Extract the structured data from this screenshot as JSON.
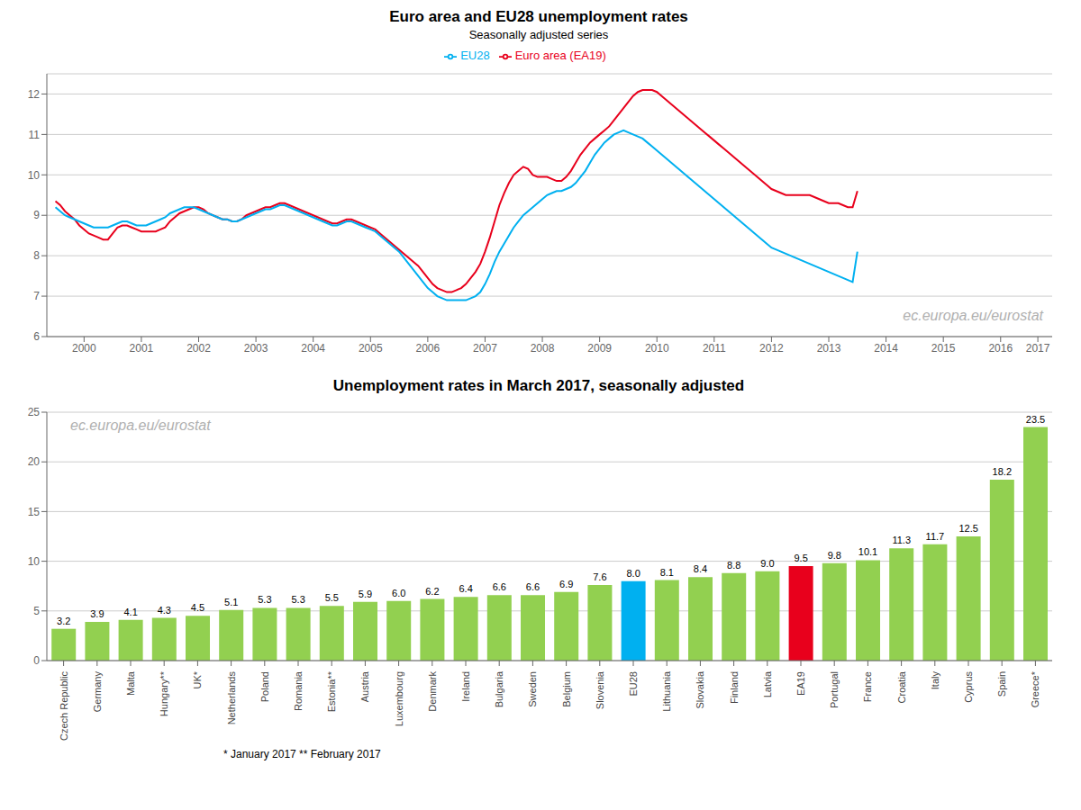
{
  "chart_data": [
    {
      "type": "line",
      "title": "Euro area and EU28 unemployment rates",
      "subtitle": "Seasonally adjusted series",
      "x": [
        2000,
        2000.083333,
        2000.166667,
        2000.25,
        2000.333333,
        2000.416667,
        2000.5,
        2000.583333,
        2000.666667,
        2000.75,
        2000.833333,
        2000.916667,
        2001,
        2001.083333,
        2001.166667,
        2001.25,
        2001.333333,
        2001.416667,
        2001.5,
        2001.583333,
        2001.666667,
        2001.75,
        2001.833333,
        2001.916667,
        2002,
        2002.083333,
        2002.166667,
        2002.25,
        2002.333333,
        2002.416667,
        2002.5,
        2002.583333,
        2002.666667,
        2002.75,
        2002.833333,
        2002.916667,
        2003,
        2003.083333,
        2003.166667,
        2003.25,
        2003.333333,
        2003.416667,
        2003.5,
        2003.583333,
        2003.666667,
        2003.75,
        2003.833333,
        2003.916667,
        2004,
        2004.083333,
        2004.166667,
        2004.25,
        2004.333333,
        2004.416667,
        2004.5,
        2004.583333,
        2004.666667,
        2004.75,
        2004.833333,
        2004.916667,
        2005,
        2005.083333,
        2005.166667,
        2005.25,
        2005.333333,
        2005.416667,
        2005.5,
        2005.583333,
        2005.666667,
        2005.75,
        2005.833333,
        2005.916667,
        2006,
        2006.083333,
        2006.166667,
        2006.25,
        2006.333333,
        2006.416667,
        2006.5,
        2006.583333,
        2006.666667,
        2006.75,
        2006.833333,
        2006.916667,
        2007,
        2007.083333,
        2007.166667,
        2007.25,
        2007.333333,
        2007.416667,
        2007.5,
        2007.583333,
        2007.666667,
        2007.75,
        2007.833333,
        2007.916667,
        2008,
        2008.083333,
        2008.166667,
        2008.25,
        2008.333333,
        2008.416667,
        2008.5,
        2008.583333,
        2008.666667,
        2008.75,
        2008.833333,
        2008.916667,
        2009,
        2009.083333,
        2009.166667,
        2009.25,
        2009.333333,
        2009.416667,
        2009.5,
        2009.583333,
        2009.666667,
        2009.75,
        2009.833333,
        2009.916667,
        2010,
        2010.083333,
        2010.166667,
        2010.25,
        2010.333333,
        2010.416667,
        2010.5,
        2010.583333,
        2010.666667,
        2010.75,
        2010.833333,
        2010.916667,
        2011,
        2011.083333,
        2011.166667,
        2011.25,
        2011.333333,
        2011.416667,
        2011.5,
        2011.583333,
        2011.666667,
        2011.75,
        2011.833333,
        2011.916667,
        2012,
        2012.083333,
        2012.166667,
        2012.25,
        2012.333333,
        2012.416667,
        2012.5,
        2012.583333,
        2012.666667,
        2012.75,
        2012.833333,
        2012.916667,
        2013,
        2013.083333,
        2013.166667,
        2013.25,
        2013.333333,
        2013.416667,
        2013.5,
        2013.583333,
        2013.666667,
        2013.75,
        2013.833333,
        2013.916667,
        2014
      ],
      "series": [
        {
          "name": "Euro area (EA19)",
          "color": "#e8001c",
          "values": [
            9.35,
            9.25,
            9.1,
            9.0,
            8.9,
            8.75,
            8.65,
            8.55,
            8.5,
            8.45,
            8.4,
            8.4,
            8.55,
            8.7,
            8.75,
            8.75,
            8.7,
            8.65,
            8.6,
            8.6,
            8.6,
            8.6,
            8.65,
            8.7,
            8.85,
            8.95,
            9.05,
            9.1,
            9.15,
            9.2,
            9.2,
            9.15,
            9.05,
            9.0,
            8.95,
            8.9,
            8.9,
            8.85,
            8.85,
            8.9,
            9.0,
            9.05,
            9.1,
            9.15,
            9.2,
            9.2,
            9.25,
            9.3,
            9.3,
            9.25,
            9.2,
            9.15,
            9.1,
            9.05,
            9.0,
            8.95,
            8.9,
            8.85,
            8.8,
            8.8,
            8.85,
            8.9,
            8.9,
            8.85,
            8.8,
            8.75,
            8.7,
            8.65,
            8.55,
            8.45,
            8.35,
            8.25,
            8.15,
            8.05,
            7.95,
            7.85,
            7.75,
            7.6,
            7.45,
            7.3,
            7.2,
            7.15,
            7.1,
            7.1,
            7.15,
            7.2,
            7.3,
            7.45,
            7.6,
            7.8,
            8.1,
            8.45,
            8.85,
            9.25,
            9.55,
            9.8,
            10.0,
            10.1,
            10.2,
            10.15,
            10.0,
            9.95,
            9.95,
            9.95,
            9.9,
            9.85,
            9.85,
            9.95,
            10.1,
            10.3,
            10.5,
            10.65,
            10.8,
            10.9,
            11.0,
            11.1,
            11.2,
            11.35,
            11.5,
            11.65,
            11.8,
            11.95,
            12.05,
            12.1,
            12.1,
            12.1,
            12.05,
            11.95,
            11.85,
            11.75,
            11.65,
            11.55,
            11.45,
            11.35,
            11.25,
            11.15,
            11.05,
            10.95,
            10.85,
            10.75,
            10.65,
            10.55,
            10.45,
            10.35,
            10.25,
            10.15,
            10.05,
            9.95,
            9.85,
            9.75,
            9.65,
            9.6,
            9.55,
            9.5,
            9.5,
            9.5,
            9.5,
            9.5,
            9.5,
            9.45,
            9.4,
            9.35,
            9.3,
            9.3,
            9.3,
            9.25,
            9.2,
            9.2,
            9.6
          ]
        },
        {
          "name": "EU28",
          "color": "#00b0f0",
          "values": [
            9.2,
            9.1,
            9.0,
            8.95,
            8.9,
            8.85,
            8.8,
            8.75,
            8.7,
            8.7,
            8.7,
            8.7,
            8.75,
            8.8,
            8.85,
            8.85,
            8.8,
            8.75,
            8.75,
            8.75,
            8.8,
            8.85,
            8.9,
            8.95,
            9.05,
            9.1,
            9.15,
            9.2,
            9.2,
            9.2,
            9.15,
            9.1,
            9.05,
            9.0,
            8.95,
            8.9,
            8.9,
            8.85,
            8.85,
            8.9,
            8.95,
            9.0,
            9.05,
            9.1,
            9.15,
            9.15,
            9.2,
            9.25,
            9.25,
            9.2,
            9.15,
            9.1,
            9.05,
            9.0,
            8.95,
            8.9,
            8.85,
            8.8,
            8.75,
            8.75,
            8.8,
            8.85,
            8.85,
            8.8,
            8.75,
            8.7,
            8.65,
            8.6,
            8.5,
            8.4,
            8.3,
            8.2,
            8.1,
            7.95,
            7.8,
            7.65,
            7.5,
            7.35,
            7.2,
            7.1,
            7.0,
            6.95,
            6.9,
            6.9,
            6.9,
            6.9,
            6.9,
            6.95,
            7.0,
            7.1,
            7.3,
            7.55,
            7.85,
            8.1,
            8.3,
            8.5,
            8.7,
            8.85,
            9.0,
            9.1,
            9.2,
            9.3,
            9.4,
            9.5,
            9.55,
            9.6,
            9.6,
            9.65,
            9.7,
            9.8,
            9.95,
            10.1,
            10.3,
            10.5,
            10.65,
            10.8,
            10.9,
            11.0,
            11.05,
            11.1,
            11.05,
            11.0,
            10.95,
            10.9,
            10.8,
            10.7,
            10.6,
            10.5,
            10.4,
            10.3,
            10.2,
            10.1,
            10.0,
            9.9,
            9.8,
            9.7,
            9.6,
            9.5,
            9.4,
            9.3,
            9.2,
            9.1,
            9.0,
            8.9,
            8.8,
            8.7,
            8.6,
            8.5,
            8.4,
            8.3,
            8.2,
            8.15,
            8.1,
            8.05,
            8.0,
            7.95,
            7.9,
            7.85,
            7.8,
            7.75,
            7.7,
            7.65,
            7.6,
            7.55,
            7.5,
            7.45,
            7.4,
            7.35,
            8.1
          ]
        }
      ],
      "xlim": [
        1999.85,
        2017.4
      ],
      "xticks": [
        {
          "value": 2000.5,
          "label": "2000"
        },
        {
          "value": 2001.5,
          "label": "2001"
        },
        {
          "value": 2002.5,
          "label": "2002"
        },
        {
          "value": 2003.5,
          "label": "2003"
        },
        {
          "value": 2004.5,
          "label": "2004"
        },
        {
          "value": 2005.5,
          "label": "2005"
        },
        {
          "value": 2006.5,
          "label": "2006"
        },
        {
          "value": 2007.5,
          "label": "2007"
        },
        {
          "value": 2008.5,
          "label": "2008"
        },
        {
          "value": 2009.5,
          "label": "2009"
        },
        {
          "value": 2010.5,
          "label": "2010"
        },
        {
          "value": 2011.5,
          "label": "2011"
        },
        {
          "value": 2012.5,
          "label": "2012"
        },
        {
          "value": 2013.5,
          "label": "2013"
        },
        {
          "value": 2014.5,
          "label": "2014"
        },
        {
          "value": 2015.5,
          "label": "2015"
        },
        {
          "value": 2016.5,
          "label": "2016"
        },
        {
          "value": 2017.15,
          "label": "2017"
        }
      ],
      "ylim": [
        6.0,
        12.5
      ],
      "yticks": [
        6,
        7,
        8,
        9,
        10,
        11,
        12
      ],
      "grid": true,
      "legend": "top",
      "annotations": [
        "ec.europa.eu/eurostat"
      ]
    },
    {
      "type": "bar",
      "title": "Unemployment rates in March 2017, seasonally adjusted",
      "categories": [
        "Czech Republic",
        "Germany",
        "Malta",
        "Hungary**",
        "UK*",
        "Netherlands",
        "Poland",
        "Romania",
        "Estonia**",
        "Austria",
        "Luxembourg",
        "Denmark",
        "Ireland",
        "Bulgaria",
        "Sweden",
        "Belgium",
        "Slovenia",
        "EU28",
        "Lithuania",
        "Slovakia",
        "Finland",
        "Latvia",
        "EA19",
        "Portugal",
        "France",
        "Croatia",
        "Italy",
        "Cyprus",
        "Spain",
        "Greece*"
      ],
      "values": [
        3.2,
        3.9,
        4.1,
        4.3,
        4.5,
        5.1,
        5.3,
        5.3,
        5.5,
        5.9,
        6.0,
        6.2,
        6.4,
        6.6,
        6.6,
        6.9,
        7.6,
        8.0,
        8.1,
        8.4,
        8.8,
        9.0,
        9.5,
        9.8,
        10.1,
        11.3,
        11.7,
        12.5,
        18.2,
        23.5
      ],
      "value_labels": [
        "3.2",
        "3.9",
        "4.1",
        "4.3",
        "4.5",
        "5.1",
        "5.3",
        "5.3",
        "5.5",
        "5.9",
        "6.0",
        "6.2",
        "6.4",
        "6.6",
        "6.6",
        "6.9",
        "7.6",
        "8.0",
        "8.1",
        "8.4",
        "8.8",
        "9.0",
        "9.5",
        "9.8",
        "10.1",
        "11.3",
        "11.7",
        "12.5",
        "18.2",
        "23.5"
      ],
      "colors": [
        "#92d050",
        "#92d050",
        "#92d050",
        "#92d050",
        "#92d050",
        "#92d050",
        "#92d050",
        "#92d050",
        "#92d050",
        "#92d050",
        "#92d050",
        "#92d050",
        "#92d050",
        "#92d050",
        "#92d050",
        "#92d050",
        "#92d050",
        "#00b0f0",
        "#92d050",
        "#92d050",
        "#92d050",
        "#92d050",
        "#e8001c",
        "#92d050",
        "#92d050",
        "#92d050",
        "#92d050",
        "#92d050",
        "#92d050",
        "#92d050"
      ],
      "ylim": [
        0,
        25
      ],
      "yticks": [
        0,
        5,
        10,
        15,
        20,
        25
      ],
      "grid": true,
      "data_labels": true,
      "annotations": [
        "ec.europa.eu/eurostat",
        "* January 2017   ** February 2017"
      ]
    }
  ]
}
